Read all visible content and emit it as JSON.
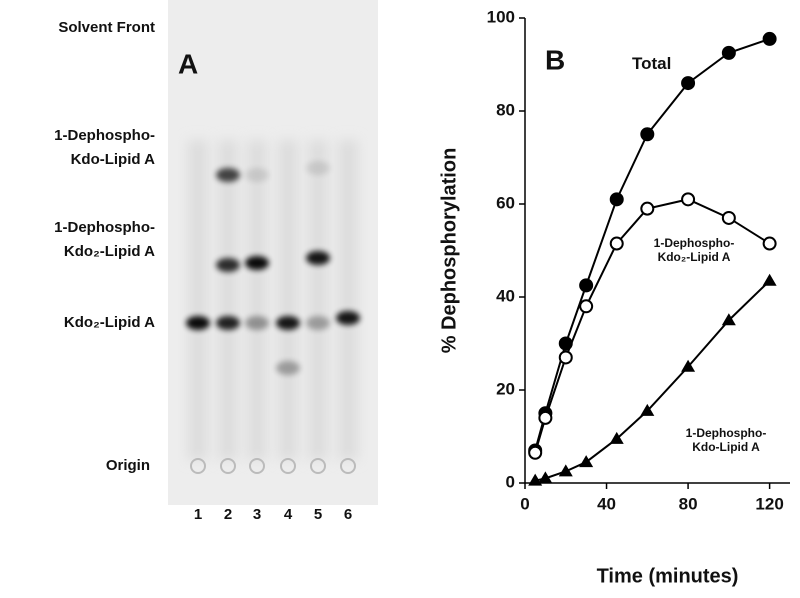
{
  "panel_a": {
    "panel_label": "A",
    "row_labels": [
      {
        "lines": [
          "Solvent Front"
        ]
      },
      {
        "lines": [
          "1-Dephospho-",
          "Kdo-Lipid A"
        ]
      },
      {
        "lines": [
          "1-Dephospho-",
          "Kdo₂-Lipid A"
        ]
      },
      {
        "lines": [
          "Kdo₂-Lipid A"
        ]
      },
      {
        "lines": [
          "Origin"
        ]
      }
    ],
    "lanes": [
      "1",
      "2",
      "3",
      "4",
      "5",
      "6"
    ]
  },
  "chart_data": {
    "type": "line",
    "panel_label": "B",
    "x_label": "Time (minutes)",
    "y_label": "% Dephosphorylation",
    "x": [
      5,
      10,
      20,
      30,
      45,
      60,
      80,
      100,
      120
    ],
    "series": [
      {
        "name": "Total",
        "color": "#000000",
        "marker": "circle-filled",
        "values": [
          7,
          15,
          30,
          42.5,
          61,
          75,
          86,
          92.5,
          95.5
        ]
      },
      {
        "name": "1-Dephospho-Kdo₂-Lipid A",
        "color": "#000000",
        "marker": "circle-open",
        "values": [
          6.5,
          14,
          27,
          38,
          51.5,
          59,
          61,
          57,
          51.5
        ]
      },
      {
        "name": "1-Dephospho-Kdo-Lipid A",
        "color": "#000000",
        "marker": "triangle",
        "values": [
          0.5,
          1,
          2.5,
          4.5,
          9.5,
          15.5,
          25,
          35,
          43.5
        ]
      }
    ],
    "xlim": [
      0,
      130
    ],
    "xticks": [
      0,
      40,
      80,
      120
    ],
    "ylim": [
      0,
      100
    ],
    "yticks": [
      0,
      20,
      40,
      60,
      80,
      100
    ],
    "grid": false
  }
}
